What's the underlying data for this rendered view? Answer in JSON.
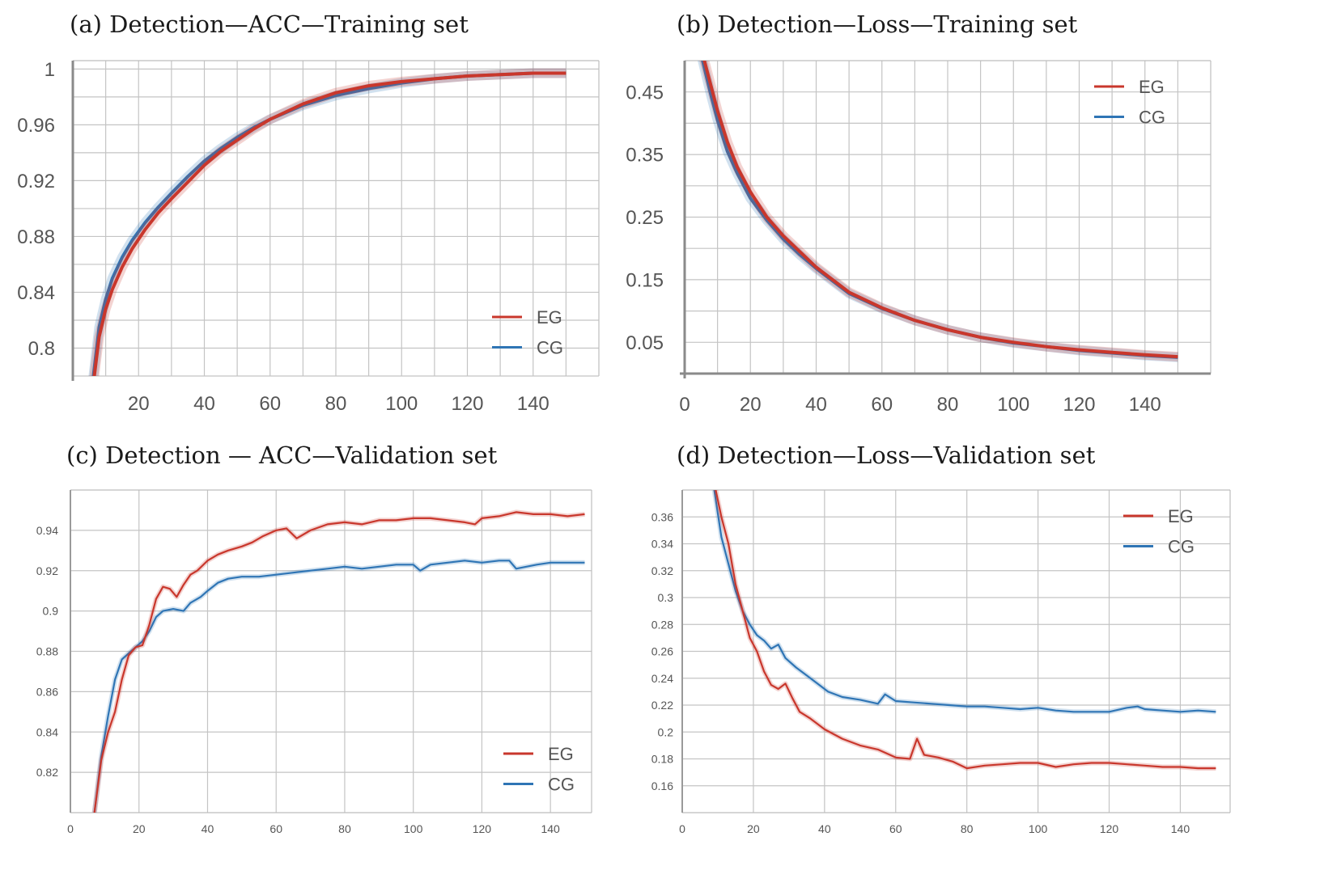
{
  "chart_data": [
    {
      "id": "a",
      "type": "line",
      "title": "(a) Detection—ACC—Training set",
      "xlabel": "",
      "ylabel": "",
      "xlim": [
        0,
        160
      ],
      "ylim": [
        0.78,
        1.006
      ],
      "xticks": [
        20,
        40,
        60,
        80,
        100,
        120,
        140
      ],
      "xtick_labels": [
        "20",
        "40",
        "60",
        "80",
        "100",
        "120",
        "140"
      ],
      "yticks": [
        1,
        0.96,
        0.92,
        0.88,
        0.84,
        0.8
      ],
      "ytick_labels": [
        "1",
        "0.96",
        "0.92",
        "0.88",
        "0.84",
        "0.8"
      ],
      "legend_position": "bottom-right",
      "series": [
        {
          "name": "EG",
          "color": "#c9372c",
          "x": [
            6,
            8,
            10,
            12,
            15,
            18,
            22,
            26,
            30,
            35,
            40,
            45,
            50,
            55,
            60,
            70,
            80,
            90,
            100,
            110,
            120,
            130,
            140,
            150
          ],
          "y": [
            0.77,
            0.808,
            0.828,
            0.842,
            0.858,
            0.871,
            0.885,
            0.897,
            0.907,
            0.919,
            0.931,
            0.941,
            0.949,
            0.957,
            0.964,
            0.975,
            0.983,
            0.988,
            0.991,
            0.993,
            0.995,
            0.996,
            0.997,
            0.997
          ]
        },
        {
          "name": "CG",
          "color": "#2f75b5",
          "x": [
            6,
            8,
            10,
            12,
            15,
            18,
            22,
            26,
            30,
            35,
            40,
            45,
            50,
            55,
            60,
            70,
            80,
            90,
            100,
            110,
            120,
            130,
            140,
            150
          ],
          "y": [
            0.775,
            0.815,
            0.835,
            0.85,
            0.865,
            0.877,
            0.89,
            0.901,
            0.911,
            0.923,
            0.934,
            0.943,
            0.951,
            0.958,
            0.964,
            0.974,
            0.981,
            0.986,
            0.99,
            0.993,
            0.995,
            0.996,
            0.997,
            0.997
          ]
        }
      ]
    },
    {
      "id": "b",
      "type": "line",
      "title": "(b) Detection—Loss—Training set",
      "xlabel": "",
      "ylabel": "",
      "xlim": [
        0,
        160
      ],
      "ylim": [
        0.0,
        0.5
      ],
      "xticks": [
        0,
        20,
        40,
        60,
        80,
        100,
        120,
        140
      ],
      "xtick_labels": [
        "0",
        "20",
        "40",
        "60",
        "80",
        "100",
        "120",
        "140"
      ],
      "yticks": [
        0.45,
        0.35,
        0.25,
        0.15,
        0.05
      ],
      "ytick_labels": [
        "0.45",
        "0.35",
        "0.25",
        "0.15",
        "0.05"
      ],
      "legend_position": "top-right",
      "series": [
        {
          "name": "EG",
          "color": "#c9372c",
          "x": [
            5,
            8,
            10,
            13,
            16,
            20,
            25,
            30,
            35,
            40,
            50,
            60,
            70,
            80,
            90,
            100,
            110,
            120,
            130,
            140,
            150
          ],
          "y": [
            0.52,
            0.46,
            0.42,
            0.37,
            0.33,
            0.29,
            0.25,
            0.22,
            0.195,
            0.17,
            0.13,
            0.105,
            0.085,
            0.07,
            0.058,
            0.05,
            0.043,
            0.038,
            0.034,
            0.03,
            0.027
          ]
        },
        {
          "name": "CG",
          "color": "#2f75b5",
          "x": [
            5,
            8,
            10,
            13,
            16,
            20,
            25,
            30,
            35,
            40,
            50,
            60,
            70,
            80,
            90,
            100,
            110,
            120,
            130,
            140,
            150
          ],
          "y": [
            0.51,
            0.445,
            0.405,
            0.355,
            0.32,
            0.28,
            0.245,
            0.215,
            0.19,
            0.168,
            0.128,
            0.104,
            0.085,
            0.07,
            0.058,
            0.049,
            0.043,
            0.037,
            0.033,
            0.029,
            0.026
          ]
        }
      ]
    },
    {
      "id": "c",
      "type": "line",
      "title": "(c) Detection — ACC—Validation set",
      "xlabel": "",
      "ylabel": "",
      "xlim": [
        0,
        152
      ],
      "ylim": [
        0.8,
        0.96
      ],
      "xticks": [
        0,
        20,
        40,
        60,
        80,
        100,
        120,
        140
      ],
      "xtick_labels": [
        "0",
        "20",
        "40",
        "60",
        "80",
        "100",
        "120",
        "140"
      ],
      "yticks": [
        0.94,
        0.92,
        0.9,
        0.88,
        0.86,
        0.84,
        0.82
      ],
      "ytick_labels": [
        "0.94",
        "0.92",
        "0.9",
        "0.88",
        "0.86",
        "0.84",
        "0.82"
      ],
      "legend_position": "bottom-right",
      "series": [
        {
          "name": "EG",
          "color": "#c9372c",
          "x": [
            7,
            9,
            11,
            13,
            15,
            17,
            19,
            21,
            23,
            25,
            27,
            29,
            31,
            33,
            35,
            37,
            40,
            43,
            46,
            50,
            53,
            56,
            60,
            63,
            66,
            70,
            75,
            80,
            85,
            90,
            95,
            100,
            105,
            110,
            115,
            118,
            120,
            125,
            130,
            135,
            140,
            145,
            150
          ],
          "y": [
            0.8,
            0.826,
            0.84,
            0.85,
            0.866,
            0.878,
            0.882,
            0.883,
            0.893,
            0.906,
            0.912,
            0.911,
            0.907,
            0.913,
            0.918,
            0.92,
            0.925,
            0.928,
            0.93,
            0.932,
            0.934,
            0.937,
            0.94,
            0.941,
            0.936,
            0.94,
            0.943,
            0.944,
            0.943,
            0.945,
            0.945,
            0.946,
            0.946,
            0.945,
            0.944,
            0.943,
            0.946,
            0.947,
            0.949,
            0.948,
            0.948,
            0.947,
            0.948
          ]
        },
        {
          "name": "CG",
          "color": "#2f75b5",
          "x": [
            7,
            9,
            11,
            13,
            15,
            17,
            19,
            21,
            23,
            25,
            27,
            30,
            33,
            35,
            38,
            40,
            43,
            46,
            50,
            55,
            60,
            65,
            70,
            75,
            80,
            85,
            90,
            95,
            100,
            102,
            105,
            110,
            115,
            120,
            125,
            128,
            130,
            133,
            136,
            140,
            145,
            150
          ],
          "y": [
            0.8,
            0.828,
            0.848,
            0.866,
            0.876,
            0.879,
            0.882,
            0.885,
            0.89,
            0.897,
            0.9,
            0.901,
            0.9,
            0.904,
            0.907,
            0.91,
            0.914,
            0.916,
            0.917,
            0.917,
            0.918,
            0.919,
            0.92,
            0.921,
            0.922,
            0.921,
            0.922,
            0.923,
            0.923,
            0.92,
            0.923,
            0.924,
            0.925,
            0.924,
            0.925,
            0.925,
            0.921,
            0.922,
            0.923,
            0.924,
            0.924,
            0.924
          ]
        }
      ]
    },
    {
      "id": "d",
      "type": "line",
      "title": "(d) Detection—Loss—Validation set",
      "xlabel": "",
      "ylabel": "",
      "xlim": [
        0,
        154
      ],
      "ylim": [
        0.14,
        0.38
      ],
      "xticks": [
        0,
        20,
        40,
        60,
        80,
        100,
        120,
        140
      ],
      "xtick_labels": [
        "0",
        "20",
        "40",
        "60",
        "80",
        "100",
        "120",
        "140"
      ],
      "yticks": [
        0.36,
        0.34,
        0.32,
        0.3,
        0.28,
        0.26,
        0.24,
        0.22,
        0.2,
        0.18,
        0.16
      ],
      "ytick_labels": [
        "0.36",
        "0.34",
        "0.32",
        "0.3",
        "0.28",
        "0.26",
        "0.24",
        "0.22",
        "0.2",
        "0.18",
        "0.16"
      ],
      "legend_position": "top-right",
      "series": [
        {
          "name": "EG",
          "color": "#c9372c",
          "x": [
            9,
            11,
            13,
            15,
            17,
            19,
            21,
            23,
            25,
            27,
            29,
            31,
            33,
            36,
            40,
            45,
            50,
            55,
            60,
            64,
            66,
            68,
            72,
            76,
            80,
            85,
            90,
            95,
            100,
            105,
            110,
            115,
            120,
            125,
            130,
            135,
            140,
            145,
            150
          ],
          "y": [
            0.385,
            0.36,
            0.34,
            0.31,
            0.29,
            0.27,
            0.26,
            0.245,
            0.235,
            0.232,
            0.236,
            0.225,
            0.215,
            0.21,
            0.202,
            0.195,
            0.19,
            0.187,
            0.181,
            0.18,
            0.195,
            0.183,
            0.181,
            0.178,
            0.173,
            0.175,
            0.176,
            0.177,
            0.177,
            0.174,
            0.176,
            0.177,
            0.177,
            0.176,
            0.175,
            0.174,
            0.174,
            0.173,
            0.173
          ]
        },
        {
          "name": "CG",
          "color": "#2f75b5",
          "x": [
            9,
            11,
            13,
            15,
            17,
            19,
            21,
            23,
            25,
            27,
            29,
            32,
            35,
            38,
            41,
            45,
            50,
            55,
            57,
            60,
            65,
            70,
            75,
            80,
            85,
            90,
            95,
            100,
            105,
            110,
            115,
            120,
            125,
            128,
            130,
            135,
            140,
            145,
            150
          ],
          "y": [
            0.38,
            0.345,
            0.325,
            0.305,
            0.29,
            0.28,
            0.272,
            0.268,
            0.262,
            0.265,
            0.255,
            0.248,
            0.242,
            0.236,
            0.23,
            0.226,
            0.224,
            0.221,
            0.228,
            0.223,
            0.222,
            0.221,
            0.22,
            0.219,
            0.219,
            0.218,
            0.217,
            0.218,
            0.216,
            0.215,
            0.215,
            0.215,
            0.218,
            0.219,
            0.217,
            0.216,
            0.215,
            0.216,
            0.215
          ]
        }
      ]
    }
  ]
}
